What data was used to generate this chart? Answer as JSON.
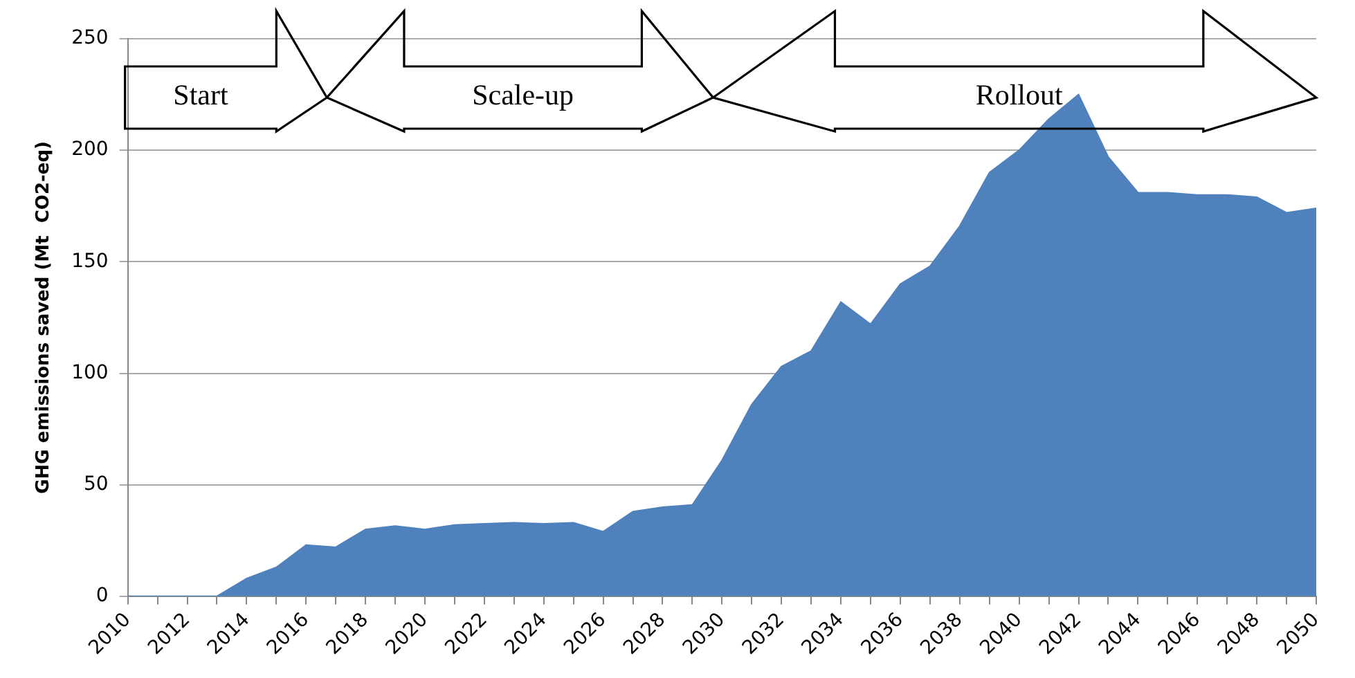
{
  "chart_data": {
    "type": "area",
    "ylabel": "GHG emissions saved (Mt  CO2-eq)",
    "categories": [
      "2010",
      null,
      "2012",
      null,
      "2014",
      null,
      "2016",
      null,
      "2018",
      null,
      "2020",
      null,
      "2022",
      null,
      "2024",
      null,
      "2026",
      null,
      "2028",
      null,
      "2030",
      null,
      "2032",
      null,
      "2034",
      null,
      "2036",
      null,
      "2038",
      null,
      "2040",
      null,
      "2042",
      null,
      "2044",
      null,
      "2046",
      null,
      "2048",
      null,
      "2050"
    ],
    "series": [
      {
        "color": "#4f81bd",
        "values": [
          0,
          0,
          0,
          0,
          8,
          13,
          23,
          22,
          30,
          31.5,
          30,
          32,
          32.5,
          33,
          32.5,
          33,
          29,
          38,
          40,
          41,
          61,
          86,
          103,
          110,
          132,
          122,
          140,
          148,
          166,
          190,
          200,
          214,
          225,
          197,
          181,
          181,
          180,
          180,
          179,
          172,
          174
        ]
      }
    ],
    "ylim": [
      0,
      250
    ],
    "yticks": [
      0,
      50,
      100,
      150,
      200,
      250
    ],
    "grid": "y",
    "marker": "none",
    "legend": false,
    "annotations": [
      "Start",
      "Scale-up",
      "Rollout"
    ]
  }
}
